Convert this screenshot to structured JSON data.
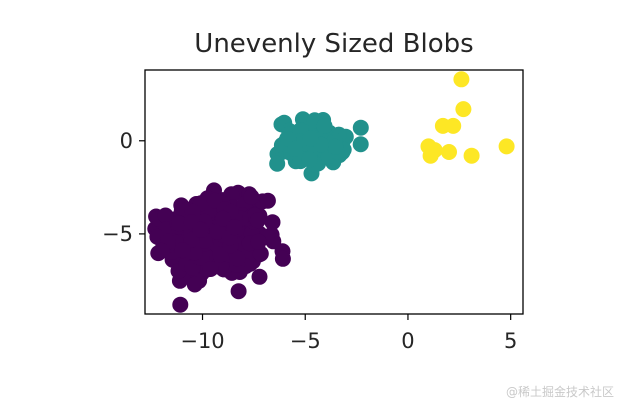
{
  "chart_data": {
    "type": "scatter",
    "title": "Unevenly Sized Blobs",
    "xlabel": "",
    "ylabel": "",
    "xlim": [
      -12.8,
      5.6
    ],
    "ylim": [
      -9.3,
      3.8
    ],
    "xticks": [
      -10,
      -5,
      0,
      5
    ],
    "yticks": [
      -5,
      0
    ],
    "xtick_labels": [
      "−10",
      "−5",
      "0",
      "5"
    ],
    "ytick_labels": [
      "−5",
      "0"
    ],
    "grid": false,
    "legend": "none",
    "clusters": [
      {
        "color": "#440154",
        "count": 500,
        "center": [
          -9.3,
          -5.2
        ],
        "spread": [
          1.15,
          1.0
        ]
      },
      {
        "color": "#21918c",
        "count": 100,
        "center": [
          -4.7,
          -0.1
        ],
        "spread": [
          0.8,
          0.6
        ]
      },
      {
        "color": "#fde725",
        "count": 10,
        "center": [
          2.3,
          0.6
        ],
        "spread": [
          1.1,
          1.3
        ]
      }
    ],
    "series": [
      {
        "color": "#fde725",
        "points": [
          [
            2.6,
            3.3
          ],
          [
            2.7,
            1.7
          ],
          [
            1.7,
            0.8
          ],
          [
            2.2,
            0.8
          ],
          [
            1.0,
            -0.3
          ],
          [
            1.3,
            -0.5
          ],
          [
            1.1,
            -0.8
          ],
          [
            2.0,
            -0.6
          ],
          [
            3.1,
            -0.8
          ],
          [
            4.8,
            -0.3
          ]
        ]
      }
    ]
  },
  "watermark": "@稀土掘金技术社区"
}
